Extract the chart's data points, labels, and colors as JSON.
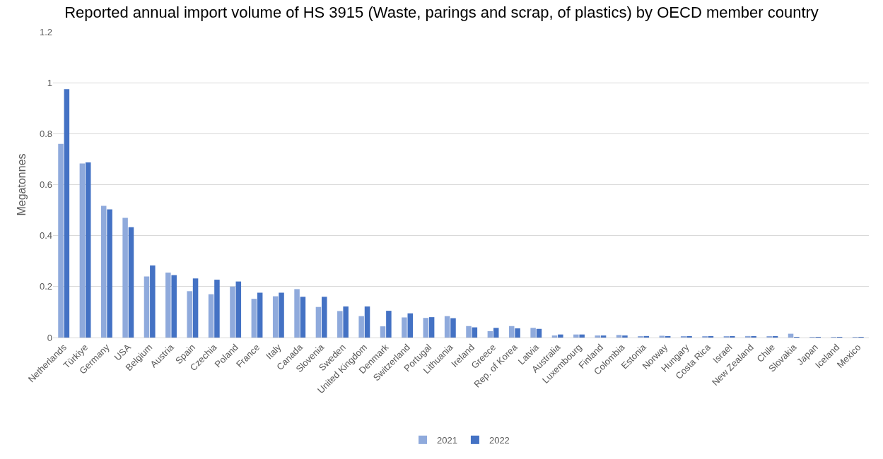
{
  "chart_data": {
    "type": "bar",
    "title": "Reported annual import volume of HS 3915 (Waste, parings and scrap, of plastics) by OECD member country",
    "ylabel": "Megatonnes",
    "categories": [
      "Netherlands",
      "Türkiye",
      "Germany",
      "USA",
      "Belgium",
      "Austria",
      "Spain",
      "Czechia",
      "Poland",
      "France",
      "Italy",
      "Canada",
      "Slovenia",
      "Sweden",
      "United Kingdom",
      "Denmark",
      "Switzerland",
      "Portugal",
      "Lithuania",
      "Ireland",
      "Greece",
      "Rep. of Korea",
      "Latvia",
      "Australia",
      "Luxembourg",
      "Finland",
      "Colombia",
      "Estonia",
      "Norway",
      "Hungary",
      "Costa Rica",
      "Israel",
      "New Zealand",
      "Chile",
      "Slovakia",
      "Japan",
      "Iceland",
      "Mexico"
    ],
    "series": [
      {
        "name": "2021",
        "color": "#8faadc",
        "values": [
          0.76,
          0.683,
          0.517,
          0.47,
          0.24,
          0.255,
          0.182,
          0.17,
          0.2,
          0.152,
          0.162,
          0.19,
          0.12,
          0.104,
          0.084,
          0.044,
          0.079,
          0.077,
          0.084,
          0.045,
          0.025,
          0.045,
          0.038,
          0.008,
          0.012,
          0.008,
          0.01,
          0.004,
          0.007,
          0.004,
          0.004,
          0.004,
          0.006,
          0.004,
          0.015,
          0.001,
          0.001,
          0.001
        ]
      },
      {
        "name": "2022",
        "color": "#4472c4",
        "values": [
          0.975,
          0.687,
          0.503,
          0.433,
          0.283,
          0.245,
          0.232,
          0.227,
          0.22,
          0.176,
          0.176,
          0.16,
          0.16,
          0.122,
          0.122,
          0.105,
          0.095,
          0.08,
          0.076,
          0.04,
          0.038,
          0.036,
          0.034,
          0.012,
          0.012,
          0.008,
          0.008,
          0.006,
          0.005,
          0.004,
          0.004,
          0.004,
          0.005,
          0.004,
          0.001,
          0.001,
          0.001,
          0.001
        ]
      }
    ],
    "ylim": [
      0,
      1.2
    ],
    "yticks": [
      0,
      0.2,
      0.4,
      0.6,
      0.8,
      1,
      1.2
    ],
    "grid": "y",
    "legend": "bottom"
  }
}
